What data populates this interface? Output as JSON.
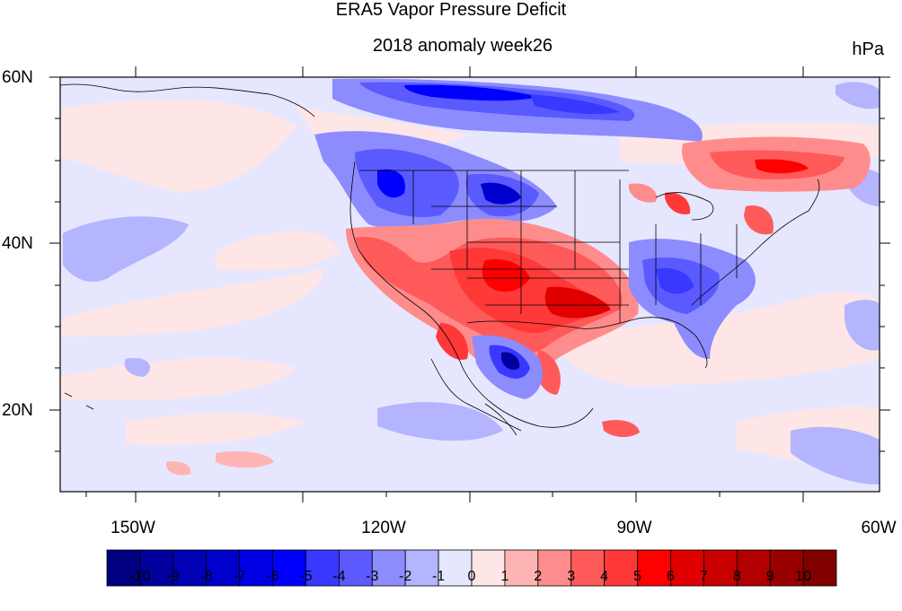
{
  "title": "ERA5 Vapor Pressure Deficit",
  "subtitle": "2018 anomaly week26",
  "units": "hPa",
  "lat_labels": [
    "60N",
    "40N",
    "20N"
  ],
  "lon_labels": [
    "150W",
    "120W",
    "90W",
    "60W"
  ],
  "colorbar": {
    "labels": [
      "-10",
      "-9",
      "-8",
      "-7",
      "-6",
      "-5",
      "-4",
      "-3",
      "-2",
      "-1",
      "0",
      "1",
      "2",
      "3",
      "4",
      "5",
      "6",
      "7",
      "8",
      "9",
      "10"
    ],
    "colors": [
      "#000080",
      "#00009c",
      "#0000b4",
      "#0000cc",
      "#0000e4",
      "#0000ff",
      "#3838ff",
      "#5a5aff",
      "#8c8cff",
      "#b4b4ff",
      "#e6e6ff",
      "#ffe6e6",
      "#ffb4b4",
      "#ff8c8c",
      "#ff5a5a",
      "#ff3838",
      "#ff0000",
      "#e00000",
      "#c80000",
      "#b00000",
      "#980000",
      "#800000"
    ]
  },
  "map": {
    "projection": "cylindrical equidistant",
    "lon_range": [
      "160W",
      "62W"
    ],
    "lat_range": [
      "10N",
      "60N"
    ],
    "variable": "vapor pressure deficit anomaly",
    "neg_color": "#5a5aff",
    "pos_color": "#ff3838"
  }
}
